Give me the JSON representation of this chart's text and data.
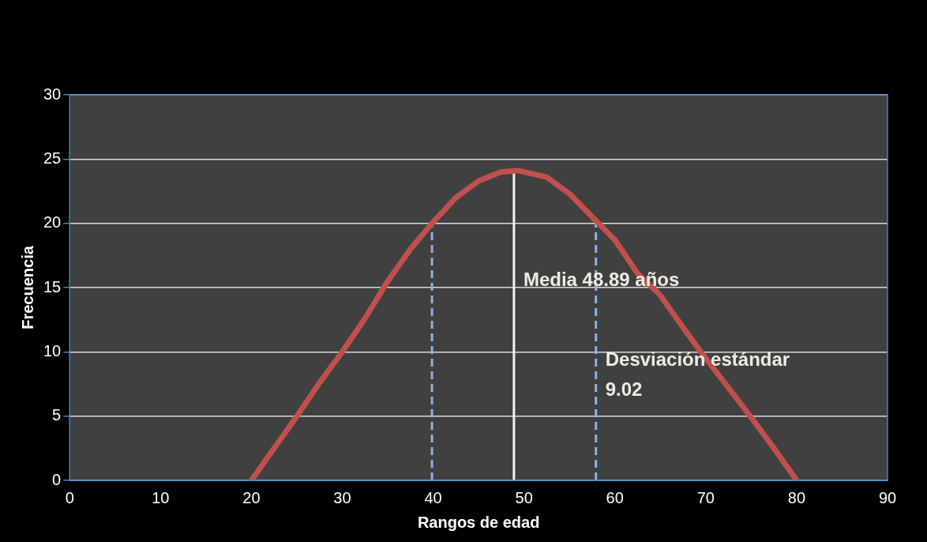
{
  "chart_data": {
    "type": "line",
    "xlabel": "Rangos de edad",
    "ylabel": "Frecuencia",
    "x": [
      20,
      22,
      25,
      27.5,
      30,
      32.5,
      35,
      37.5,
      40,
      42.5,
      45,
      47.5,
      49.4,
      52.5,
      55,
      57.5,
      60,
      62.5,
      65,
      67.5,
      70,
      72.5,
      75,
      77.5,
      80
    ],
    "series": [
      {
        "color": "#c0504d",
        "values": [
          0,
          2,
          5,
          7.6,
          10,
          12.6,
          15.5,
          18,
          20.1,
          22,
          23.3,
          24,
          24.1,
          23.6,
          22.3,
          20.5,
          18.7,
          16.1,
          14.4,
          11.9,
          9.5,
          7.2,
          4.9,
          2.5,
          0
        ]
      }
    ],
    "xlim": [
      0,
      90
    ],
    "xticks": [
      0,
      10,
      20,
      30,
      40,
      50,
      60,
      70,
      80,
      90
    ],
    "ylim": [
      0,
      30
    ],
    "yticks": [
      0,
      5,
      10,
      15,
      20,
      25,
      30
    ],
    "grid": "y",
    "legend": false,
    "marker": "none",
    "line_style": "solid",
    "ref_lines": [
      {
        "axis": "x",
        "value": 48.89,
        "label": "Media 48.89 años",
        "color": "#f2f2f2",
        "line_style": "solid"
      },
      {
        "axis": "x",
        "value": 39.87,
        "color": "#8db3e2",
        "line_style": "dashed"
      },
      {
        "axis": "x",
        "value": 57.91,
        "label": "Desviación estándar 9.02",
        "color": "#8db3e2",
        "line_style": "dashed"
      }
    ]
  }
}
